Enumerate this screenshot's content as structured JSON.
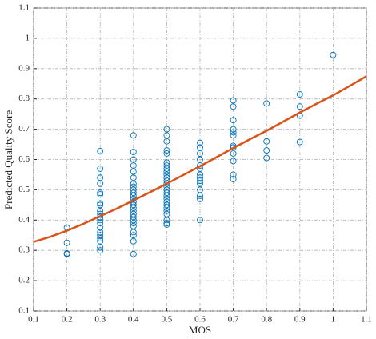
{
  "chart_data": {
    "type": "scatter",
    "xlabel": "MOS",
    "ylabel": "Predicted Quality Score",
    "xlim": [
      0.1,
      1.1
    ],
    "ylim": [
      0.1,
      1.1
    ],
    "xticks": [
      0.1,
      0.2,
      0.3,
      0.4,
      0.5,
      0.6,
      0.7,
      0.8,
      0.9,
      1,
      1.1
    ],
    "yticks": [
      0.1,
      0.2,
      0.3,
      0.4,
      0.5,
      0.6,
      0.7,
      0.8,
      0.9,
      1,
      1.1
    ],
    "grid": true,
    "series": [
      {
        "type": "scatter",
        "color": "#0072bd",
        "x": [
          0.2,
          0.2,
          0.2,
          0.2,
          0.3,
          0.3,
          0.3,
          0.3,
          0.3,
          0.3,
          0.3,
          0.3,
          0.3,
          0.3,
          0.3,
          0.3,
          0.3,
          0.3,
          0.3,
          0.3,
          0.3,
          0.3,
          0.3,
          0.3,
          0.4,
          0.4,
          0.4,
          0.4,
          0.4,
          0.4,
          0.4,
          0.4,
          0.4,
          0.4,
          0.4,
          0.4,
          0.4,
          0.4,
          0.4,
          0.4,
          0.4,
          0.4,
          0.4,
          0.4,
          0.4,
          0.4,
          0.4,
          0.4,
          0.4,
          0.5,
          0.5,
          0.5,
          0.5,
          0.5,
          0.5,
          0.5,
          0.5,
          0.5,
          0.5,
          0.5,
          0.5,
          0.5,
          0.5,
          0.5,
          0.5,
          0.5,
          0.5,
          0.5,
          0.5,
          0.5,
          0.5,
          0.5,
          0.5,
          0.5,
          0.5,
          0.6,
          0.6,
          0.6,
          0.6,
          0.6,
          0.6,
          0.6,
          0.6,
          0.6,
          0.6,
          0.6,
          0.6,
          0.6,
          0.6,
          0.7,
          0.7,
          0.7,
          0.7,
          0.7,
          0.7,
          0.7,
          0.7,
          0.7,
          0.7,
          0.7,
          0.7,
          0.8,
          0.8,
          0.8,
          0.8,
          0.9,
          0.9,
          0.9,
          0.9,
          1
        ],
        "values": [
          0.375,
          0.325,
          0.29,
          0.288,
          0.628,
          0.57,
          0.54,
          0.52,
          0.49,
          0.485,
          0.455,
          0.45,
          0.43,
          0.42,
          0.41,
          0.4,
          0.39,
          0.375,
          0.36,
          0.35,
          0.34,
          0.33,
          0.31,
          0.3,
          0.68,
          0.625,
          0.6,
          0.58,
          0.56,
          0.54,
          0.52,
          0.51,
          0.5,
          0.49,
          0.48,
          0.47,
          0.46,
          0.45,
          0.44,
          0.43,
          0.42,
          0.41,
          0.4,
          0.39,
          0.38,
          0.36,
          0.35,
          0.33,
          0.288,
          0.7,
          0.68,
          0.66,
          0.63,
          0.62,
          0.59,
          0.58,
          0.57,
          0.56,
          0.55,
          0.54,
          0.53,
          0.52,
          0.51,
          0.5,
          0.49,
          0.48,
          0.47,
          0.46,
          0.45,
          0.44,
          0.43,
          0.42,
          0.4,
          0.39,
          0.385,
          0.655,
          0.64,
          0.62,
          0.6,
          0.58,
          0.57,
          0.55,
          0.54,
          0.53,
          0.52,
          0.5,
          0.48,
          0.47,
          0.4,
          0.795,
          0.775,
          0.73,
          0.7,
          0.69,
          0.68,
          0.645,
          0.64,
          0.62,
          0.595,
          0.55,
          0.535,
          0.785,
          0.66,
          0.63,
          0.605,
          0.815,
          0.775,
          0.745,
          0.658,
          0.945
        ]
      },
      {
        "type": "line",
        "color": "#d95319",
        "x": [
          0.1,
          0.15,
          0.2,
          0.25,
          0.3,
          0.35,
          0.4,
          0.45,
          0.5,
          0.55,
          0.6,
          0.65,
          0.7,
          0.75,
          0.8,
          0.85,
          0.9,
          0.95,
          1,
          1.05,
          1.1
        ],
        "values": [
          0.328,
          0.345,
          0.365,
          0.388,
          0.413,
          0.438,
          0.465,
          0.492,
          0.52,
          0.549,
          0.578,
          0.608,
          0.638,
          0.667,
          0.695,
          0.725,
          0.755,
          0.784,
          0.812,
          0.843,
          0.875
        ]
      }
    ]
  }
}
